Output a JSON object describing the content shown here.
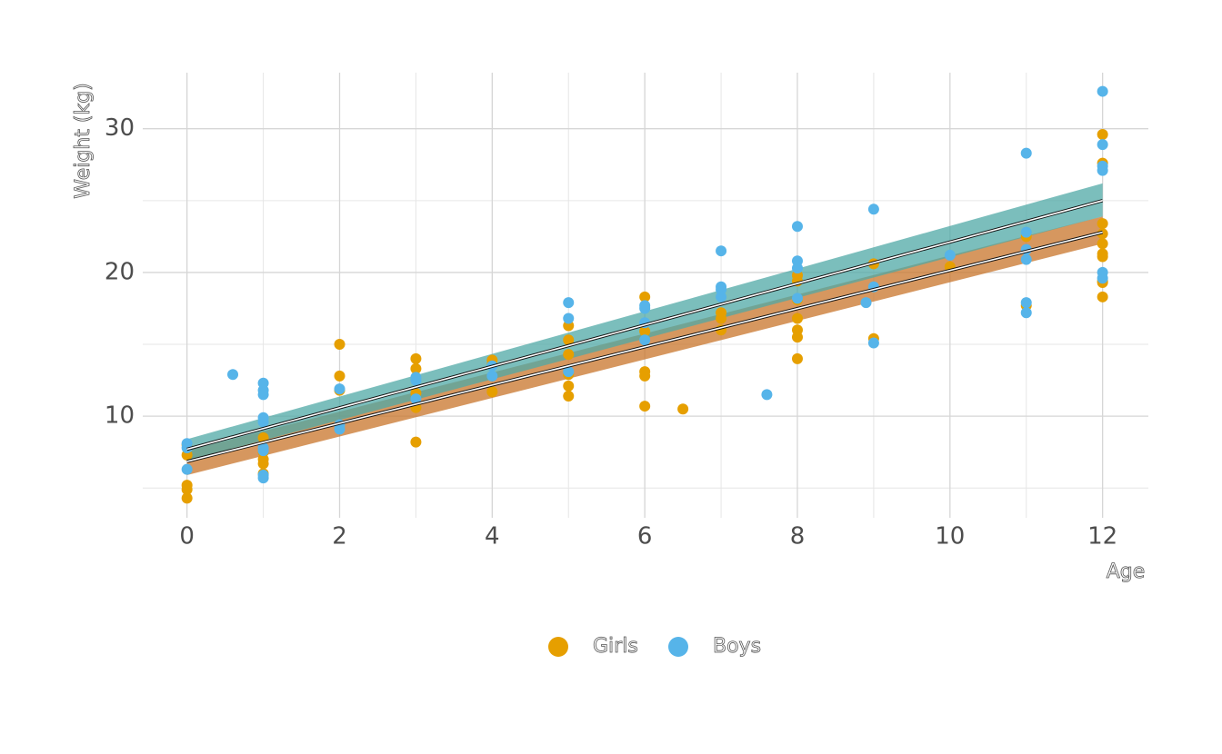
{
  "chart_data": {
    "type": "scatter",
    "x_label": "Age",
    "y_label": "Weight (kg)",
    "xlim": [
      -0.58,
      12.6
    ],
    "ylim": [
      2.93,
      33.9
    ],
    "xticks": [
      0,
      2,
      4,
      6,
      8,
      10,
      12
    ],
    "yticks": [
      10,
      20,
      30
    ],
    "xminor": [
      1,
      3,
      5,
      7,
      9,
      11
    ],
    "yminor": [
      5,
      15,
      25
    ],
    "grid": true,
    "legend": "bottom",
    "series": [
      {
        "name": "Girls",
        "color": "#E69F00",
        "band_color": "#c8742a",
        "x": [
          0,
          0,
          0,
          0,
          0,
          1,
          1,
          1,
          1,
          1,
          2,
          2,
          2,
          3,
          3,
          3,
          3,
          3,
          4,
          4,
          4,
          5,
          5,
          5,
          5,
          5,
          5,
          6,
          6,
          6,
          6,
          6,
          6.5,
          7,
          7,
          7,
          8,
          8,
          8,
          8,
          8,
          8,
          8,
          9,
          9,
          10,
          11,
          11,
          12,
          12,
          12,
          12,
          12,
          12,
          12,
          12,
          12,
          12
        ],
        "values": [
          8.0,
          7.3,
          5.2,
          4.9,
          4.3,
          8.5,
          7.0,
          6.7,
          6.0,
          7.5,
          15.0,
          12.8,
          11.8,
          14.0,
          13.3,
          10.6,
          8.2,
          11.6,
          13.9,
          13.6,
          11.7,
          16.3,
          15.3,
          14.3,
          12.9,
          12.1,
          11.4,
          18.3,
          15.9,
          13.1,
          12.8,
          10.7,
          10.5,
          17.2,
          16.8,
          16.0,
          19.8,
          19.4,
          18.1,
          16.8,
          16.0,
          15.5,
          14.0,
          20.6,
          15.4,
          20.4,
          22.5,
          17.7,
          29.6,
          27.6,
          23.4,
          22.7,
          22.0,
          21.3,
          21.1,
          19.4,
          19.3,
          18.3
        ],
        "fit": {
          "x": [
            0,
            12
          ],
          "y": [
            6.85,
            22.8
          ],
          "lower": [
            5.9,
            22.0
          ],
          "upper": [
            7.6,
            23.9
          ]
        }
      },
      {
        "name": "Boys",
        "color": "#56B4E9",
        "band_color": "#4fa8a6",
        "x": [
          0,
          0,
          0,
          0.6,
          1,
          1,
          1,
          1,
          1,
          1,
          1,
          1,
          1,
          2,
          2,
          2,
          3,
          3,
          3,
          4,
          4,
          5,
          5,
          5,
          6,
          6,
          6,
          6,
          7,
          7,
          7,
          7,
          7.6,
          8,
          8,
          8,
          8,
          8.9,
          9,
          9,
          9,
          10,
          11,
          11,
          11,
          11,
          11,
          11,
          12,
          12,
          12,
          12,
          12,
          12
        ],
        "values": [
          8.1,
          7.8,
          6.3,
          12.9,
          12.3,
          11.8,
          11.5,
          9.9,
          9.6,
          7.8,
          7.6,
          5.9,
          5.7,
          11.9,
          9.4,
          9.1,
          12.7,
          12.5,
          11.2,
          13.5,
          12.8,
          17.9,
          16.8,
          13.1,
          17.7,
          17.5,
          16.5,
          15.3,
          21.5,
          19.0,
          18.8,
          18.3,
          11.5,
          23.2,
          20.8,
          20.3,
          18.2,
          17.9,
          24.4,
          19.0,
          15.1,
          21.2,
          28.3,
          22.8,
          21.6,
          20.9,
          17.9,
          17.2,
          32.6,
          28.9,
          27.4,
          27.1,
          20.0,
          19.6
        ],
        "fit": {
          "x": [
            0,
            12
          ],
          "y": [
            7.7,
            25.0
          ],
          "lower": [
            6.9,
            23.9
          ],
          "upper": [
            8.4,
            26.2
          ]
        }
      }
    ]
  }
}
